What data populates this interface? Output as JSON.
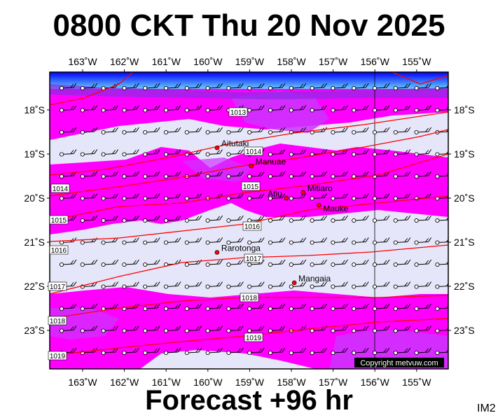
{
  "title": "0800 CKT Thu 20 Nov 2025",
  "subtitle": "Forecast +96 hr",
  "corner_label": "IM2",
  "copyright": "Copyright metvuw.com",
  "colors": {
    "background": "#e6e6fa",
    "rain_heavy": "#ff00ff",
    "rain_medium": "#cc33ff",
    "rain_dark": "#8a2be2",
    "deep": "#4040ff",
    "isobar": "#ff0000"
  },
  "axes": {
    "top_labels": [
      "163˚W",
      "162˚W",
      "161˚W",
      "160˚W",
      "159˚W",
      "158˚W",
      "157˚W",
      "156˚W",
      "155˚W"
    ],
    "bottom_labels": [
      "163˚W",
      "162˚W",
      "161˚W",
      "160˚W",
      "159˚W",
      "158˚W",
      "157˚W",
      "156˚W",
      "155˚W"
    ],
    "left_labels": [
      "18˚S",
      "19˚S",
      "20˚S",
      "21˚S",
      "22˚S",
      "23˚S"
    ],
    "right_labels": [
      "18˚S",
      "19˚S",
      "20˚S",
      "21˚S",
      "22˚S",
      "23˚S"
    ]
  },
  "places": [
    {
      "name": "Aitutaki",
      "lon": -159.78,
      "lat": -18.86
    },
    {
      "name": "Manuae",
      "lon": -158.96,
      "lat": -19.27
    },
    {
      "name": "Mitiaro",
      "lon": -157.72,
      "lat": -19.87
    },
    {
      "name": "Atiu",
      "lon": -158.12,
      "lat": -20.0
    },
    {
      "name": "Mauke",
      "lon": -157.34,
      "lat": -20.16
    },
    {
      "name": "Rarotonga",
      "lon": -159.78,
      "lat": -21.23
    },
    {
      "name": "Mangaia",
      "lon": -157.93,
      "lat": -21.92
    }
  ],
  "isobars": [
    {
      "label": "1013"
    },
    {
      "label": "1014"
    },
    {
      "label": "1015"
    },
    {
      "label": "1016"
    },
    {
      "label": "1017"
    },
    {
      "label": "1018"
    },
    {
      "label": "1019"
    }
  ],
  "isobar_labels_visible": [
    "1013",
    "1014",
    "1014",
    "1015",
    "1015",
    "1016",
    "1016",
    "1017",
    "1017",
    "1018",
    "1018",
    "1019",
    "1019"
  ]
}
